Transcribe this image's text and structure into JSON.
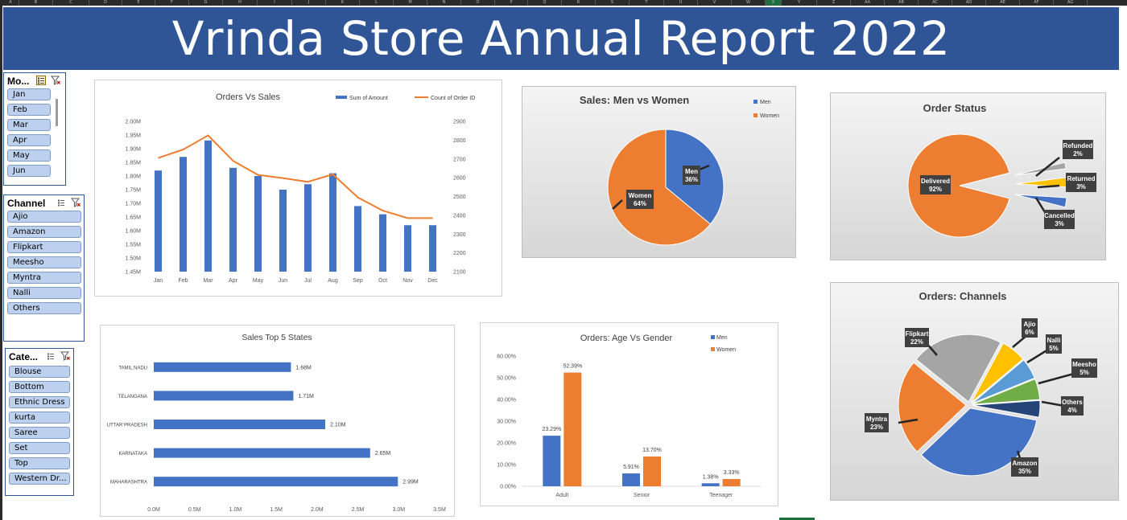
{
  "column_headers": [
    "A",
    "B",
    "C",
    "D",
    "E",
    "F",
    "G",
    "H",
    "I",
    "J",
    "K",
    "L",
    "M",
    "N",
    "O",
    "P",
    "Q",
    "R",
    "S",
    "T",
    "U",
    "V",
    "W",
    "X",
    "Y",
    "Z",
    "AA",
    "AB",
    "AC",
    "AD",
    "AE",
    "AF",
    "AG"
  ],
  "selected_column": "X",
  "report_title": "Vrinda Store Annual Report 2022",
  "slicers": {
    "month": {
      "title": "Mo...",
      "items": [
        "Jan",
        "Feb",
        "Mar",
        "Apr",
        "May",
        "Jun"
      ]
    },
    "channel": {
      "title": "Channel",
      "items": [
        "Ajio",
        "Amazon",
        "Flipkart",
        "Meesho",
        "Myntra",
        "Nalli",
        "Others"
      ]
    },
    "category": {
      "title": "Cate...",
      "items": [
        "Blouse",
        "Bottom",
        "Ethnic Dress",
        "kurta",
        "Saree",
        "Set",
        "Top",
        "Western Dr..."
      ]
    }
  },
  "icons": {
    "multi_select": "multi-select-icon",
    "clear_filter": "clear-filter-icon"
  },
  "colors": {
    "banner": "#2f5597",
    "blue": "#4472c4",
    "orange": "#ed7d31",
    "gray": "#a5a5a5",
    "yellow": "#ffc000",
    "lightblue": "#5b9bd5",
    "green": "#70ad47",
    "navy": "#264478",
    "slicer_item": "#bdd1ee"
  },
  "charts": {
    "orders_vs_sales": {
      "title": "Orders Vs Sales",
      "legend": [
        "Sum of Amount",
        "Count of Order ID"
      ]
    },
    "men_vs_women": {
      "title": "Sales: Men vs Women",
      "legend": [
        "Men",
        "Women"
      ]
    },
    "order_status": {
      "title": "Order Status"
    },
    "orders_channels": {
      "title": "Orders: Channels"
    },
    "top_states": {
      "title": "Sales Top 5 States"
    },
    "age_vs_gender": {
      "title": "Orders: Age Vs Gender",
      "legend": [
        "Men",
        "Women"
      ]
    }
  },
  "chart_data": [
    {
      "id": "orders_vs_sales",
      "type": "bar",
      "title": "Orders Vs Sales",
      "categories": [
        "Jan",
        "Feb",
        "Mar",
        "Apr",
        "May",
        "Jun",
        "Jul",
        "Aug",
        "Sep",
        "Oct",
        "Nov",
        "Dec"
      ],
      "series": [
        {
          "name": "Sum of Amount",
          "type": "bar",
          "axis": "left",
          "values": [
            1.82,
            1.87,
            1.93,
            1.83,
            1.8,
            1.75,
            1.77,
            1.81,
            1.69,
            1.66,
            1.62,
            1.62
          ]
        },
        {
          "name": "Count of Order ID",
          "type": "line",
          "axis": "right",
          "values": [
            2705,
            2750,
            2825,
            2690,
            2615,
            2598,
            2578,
            2618,
            2495,
            2425,
            2385,
            2385
          ]
        }
      ],
      "ylim": [
        1.45,
        2.0
      ],
      "yticks": [
        "1.45M",
        "1.50M",
        "1.55M",
        "1.60M",
        "1.65M",
        "1.70M",
        "1.75M",
        "1.80M",
        "1.85M",
        "1.90M",
        "1.95M",
        "2.00M"
      ],
      "y2lim": [
        2100,
        2900
      ],
      "y2ticks": [
        "2100",
        "2200",
        "2300",
        "2400",
        "2500",
        "2600",
        "2700",
        "2800",
        "2900"
      ],
      "legend": "top-right",
      "grid": false
    },
    {
      "id": "men_vs_women",
      "type": "pie",
      "title": "Sales: Men vs Women",
      "slices": [
        {
          "label": "Men",
          "value": 36,
          "text": "36%"
        },
        {
          "label": "Women",
          "value": 64,
          "text": "64%"
        }
      ],
      "legend": "top-right"
    },
    {
      "id": "order_status",
      "type": "pie",
      "title": "Order Status",
      "slices": [
        {
          "label": "Delivered",
          "value": 92,
          "text": "92%"
        },
        {
          "label": "Refunded",
          "value": 2,
          "text": "2%"
        },
        {
          "label": "Returned",
          "value": 3,
          "text": "3%"
        },
        {
          "label": "Cancelled",
          "value": 3,
          "text": "3%"
        }
      ]
    },
    {
      "id": "orders_channels",
      "type": "pie",
      "title": "Orders: Channels",
      "slices": [
        {
          "label": "Amazon",
          "value": 35,
          "text": "35%"
        },
        {
          "label": "Myntra",
          "value": 23,
          "text": "23%"
        },
        {
          "label": "Flipkart",
          "value": 22,
          "text": "22%"
        },
        {
          "label": "Ajio",
          "value": 6,
          "text": "6%"
        },
        {
          "label": "Nalli",
          "value": 5,
          "text": "5%"
        },
        {
          "label": "Meesho",
          "value": 5,
          "text": "5%"
        },
        {
          "label": "Others",
          "value": 4,
          "text": "4%"
        }
      ]
    },
    {
      "id": "top_states",
      "type": "bar",
      "orientation": "horizontal",
      "title": "Sales Top 5 States",
      "categories": [
        "TAMIL NADU",
        "TELANGANA",
        "UTTAR PRADESH",
        "KARNATAKA",
        "MAHARASHTRA"
      ],
      "values": [
        1.68,
        1.71,
        2.1,
        2.65,
        2.99
      ],
      "labels": [
        "1.68M",
        "1.71M",
        "2.10M",
        "2.65M",
        "2.99M"
      ],
      "xlim": [
        0,
        3.5
      ],
      "xticks": [
        "0.0M",
        "0.5M",
        "1.0M",
        "1.5M",
        "2.0M",
        "2.5M",
        "3.0M",
        "3.5M"
      ]
    },
    {
      "id": "age_vs_gender",
      "type": "bar",
      "title": "Orders: Age Vs Gender",
      "categories": [
        "Adult",
        "Senior",
        "Teenager"
      ],
      "series": [
        {
          "name": "Men",
          "values": [
            23.29,
            5.91,
            1.38
          ],
          "labels": [
            "23.29%",
            "5.91%",
            "1.38%"
          ]
        },
        {
          "name": "Women",
          "values": [
            52.39,
            13.7,
            3.33
          ],
          "labels": [
            "52.39%",
            "13.70%",
            "3.33%"
          ]
        }
      ],
      "ylim": [
        0,
        60
      ],
      "yticks": [
        "0.00%",
        "10.00%",
        "20.00%",
        "30.00%",
        "40.00%",
        "50.00%",
        "60.00%"
      ],
      "legend": "top-right"
    }
  ]
}
